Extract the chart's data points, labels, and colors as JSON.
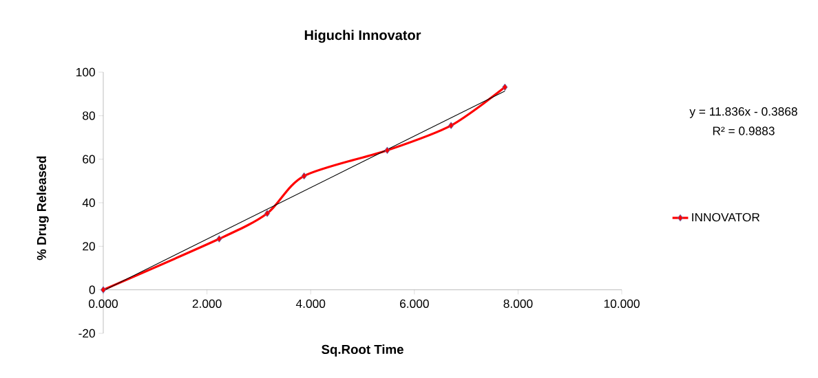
{
  "chart_data": {
    "type": "line",
    "title": "Higuchi Innovator",
    "xlabel": "Sq.Root Time",
    "ylabel": "% Drug Released",
    "x": [
      0,
      2.236,
      3.162,
      3.873,
      5.477,
      6.708,
      7.746
    ],
    "series": [
      {
        "name": "INNOVATOR",
        "color": "#ff0000",
        "values": [
          0,
          23.4,
          35.1,
          52.3,
          64.1,
          75.5,
          93.1
        ]
      },
      {
        "type": "line",
        "color": "#000000",
        "x": [
          0,
          7.746
        ],
        "values": [
          -0.4,
          91.3
        ],
        "marker": "none"
      }
    ],
    "xlim": [
      0,
      10
    ],
    "ylim": [
      -20,
      100
    ],
    "xticks": [
      {
        "value": 0,
        "label": "0.000"
      },
      {
        "value": 2,
        "label": "2.000"
      },
      {
        "value": 4,
        "label": "4.000"
      },
      {
        "value": 6,
        "label": "6.000"
      },
      {
        "value": 8,
        "label": "8.000"
      },
      {
        "value": 10,
        "label": "10.000"
      }
    ],
    "yticks": [
      -20,
      0,
      20,
      40,
      60,
      80,
      100
    ],
    "legend": "right",
    "marker": "diamond",
    "line_style": "solid",
    "annotations": [
      "y = 11.836x - 0.3868",
      "R² = 0.9883"
    ]
  }
}
